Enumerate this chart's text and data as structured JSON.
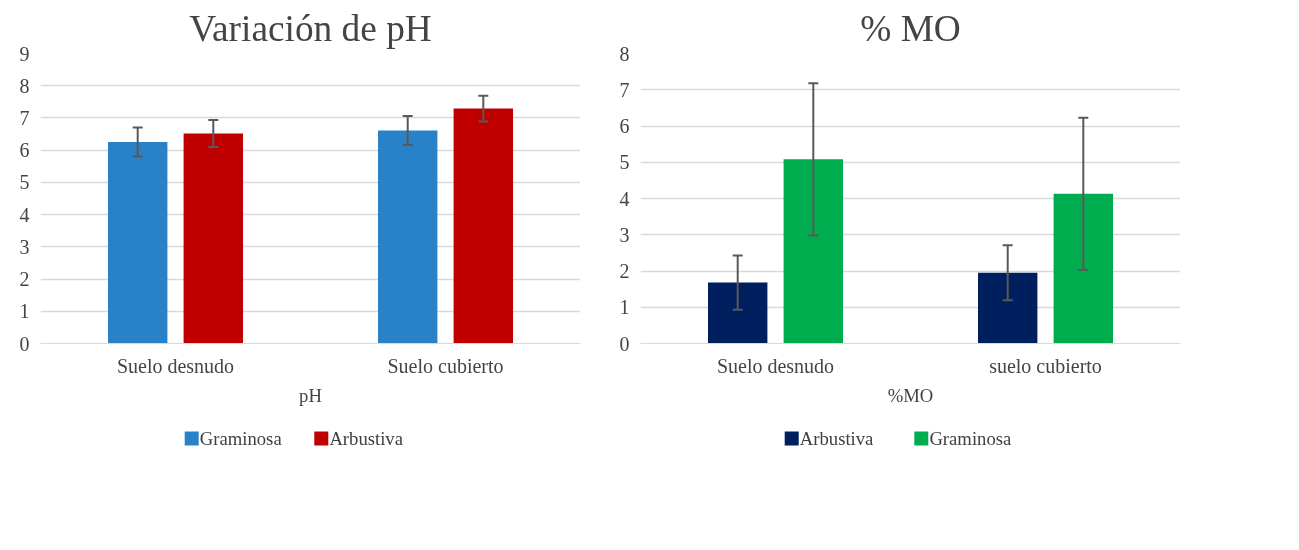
{
  "chart_data": [
    {
      "type": "bar",
      "title": "Variación de pH",
      "xlabel": "pH",
      "categories": [
        "Suelo desnudo",
        "Suelo cubierto"
      ],
      "ylim": [
        0,
        9
      ],
      "yticks": [
        0,
        1,
        2,
        3,
        4,
        5,
        6,
        7,
        8,
        9
      ],
      "grid": "y",
      "legend": "bottom",
      "series": [
        {
          "name": "Graminosa",
          "color": "#2981c8",
          "values": [
            6.25,
            6.61
          ],
          "errors": [
            0.45,
            0.45
          ]
        },
        {
          "name": "Arbustiva",
          "color": "#c00000",
          "values": [
            6.52,
            7.29
          ],
          "errors": [
            0.42,
            0.4
          ]
        }
      ]
    },
    {
      "type": "bar",
      "title": "% MO",
      "xlabel": "%MO",
      "categories": [
        "Suelo desnudo",
        "suelo cubierto"
      ],
      "ylim": [
        0,
        8
      ],
      "yticks": [
        0,
        1,
        2,
        3,
        4,
        5,
        6,
        7,
        8
      ],
      "grid": "y",
      "legend": "bottom",
      "series": [
        {
          "name": "Arbustiva",
          "color": "#001f5f",
          "values": [
            1.68,
            1.95
          ],
          "errors": [
            0.75,
            0.76
          ]
        },
        {
          "name": "Graminosa",
          "color": "#00ad4e",
          "values": [
            5.08,
            4.13
          ],
          "errors": [
            2.1,
            2.1
          ]
        }
      ]
    }
  ]
}
